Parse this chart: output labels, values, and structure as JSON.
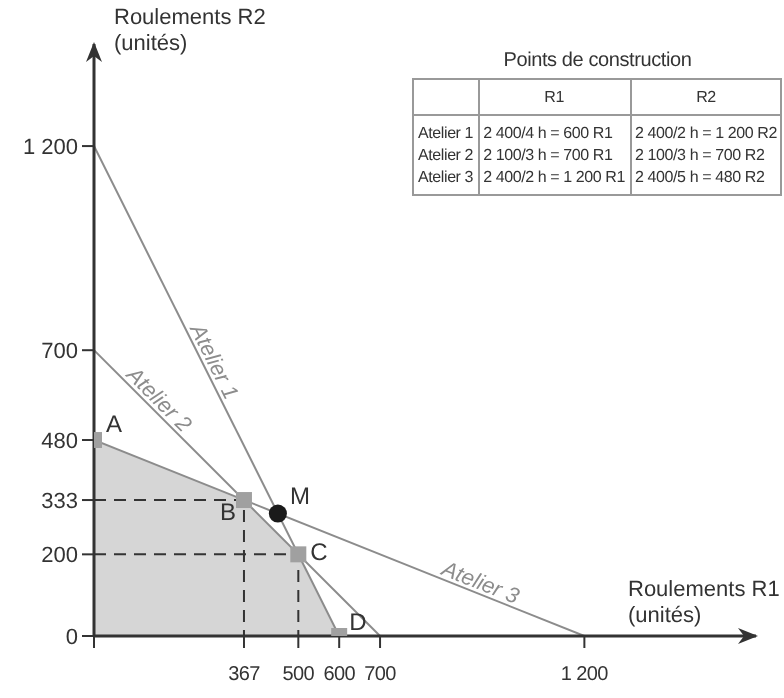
{
  "chart_data": [
    {
      "type": "line",
      "xlabel": "Roulements R1\n(unités)",
      "ylabel": "Roulements R2\n(unités)",
      "xlim": [
        0,
        1620
      ],
      "ylim": [
        0,
        1450
      ],
      "xticks": [
        {
          "value": 0,
          "label": null
        },
        367,
        500,
        600,
        700,
        {
          "value": 1200,
          "label": "1 200"
        }
      ],
      "yticks": [
        0,
        200,
        333,
        480,
        700,
        {
          "value": 1200,
          "label": "1 200"
        }
      ],
      "grid": false,
      "legend": false,
      "series": [
        {
          "name": "Atelier 1",
          "type": "line",
          "x": [
            0,
            600
          ],
          "values": [
            1200,
            0
          ],
          "color": "#8c8c8c"
        },
        {
          "name": "Atelier 2",
          "type": "line",
          "x": [
            0,
            700
          ],
          "values": [
            700,
            0
          ],
          "color": "#8c8c8c"
        },
        {
          "name": "Atelier 3",
          "type": "line",
          "x": [
            0,
            1200
          ],
          "values": [
            480,
            0
          ],
          "color": "#8c8c8c"
        },
        {
          "type": "area",
          "x": [
            0,
            367,
            500,
            600
          ],
          "values": [
            480,
            333,
            200,
            0
          ],
          "color": "#d6d6d6"
        },
        {
          "type": "line",
          "line_style": "dashed",
          "x": [
            0,
            367,
            367
          ],
          "values": [
            333,
            333,
            0
          ],
          "color": "#333333"
        },
        {
          "type": "line",
          "line_style": "dashed",
          "x": [
            0,
            500,
            500
          ],
          "values": [
            200,
            200,
            0
          ],
          "color": "#333333"
        },
        {
          "type": "scatter",
          "marker": "square",
          "x": [
            0,
            367,
            500,
            600
          ],
          "values": [
            480,
            333,
            200,
            0
          ],
          "color": "#a0a0a0"
        },
        {
          "type": "scatter",
          "marker": "circle",
          "x": [
            450
          ],
          "values": [
            300
          ],
          "color": "#1a1a1a"
        }
      ],
      "annotations": [
        {
          "text": "A",
          "x": 0,
          "y": 480
        },
        {
          "text": "B",
          "x": 367,
          "y": 333
        },
        {
          "text": "C",
          "x": 500,
          "y": 200
        },
        {
          "text": "D",
          "x": 600,
          "y": 0
        },
        {
          "text": "M",
          "x": 450,
          "y": 300
        }
      ]
    },
    {
      "type": "other",
      "title": "Points de construction",
      "categories": [
        "R1",
        "R2"
      ],
      "y_categories": [
        "Atelier 1",
        "Atelier 2",
        "Atelier 3"
      ],
      "cell_labels": [
        [
          "2 400/4 h = 600 R1",
          "2 400/2 h = 1 200 R2"
        ],
        [
          "2 100/3 h = 700 R1",
          "2 100/3 h = 700 R2"
        ],
        [
          "2 400/2 h = 1 200 R1",
          "2 400/5 h = 480 R2"
        ]
      ]
    }
  ]
}
